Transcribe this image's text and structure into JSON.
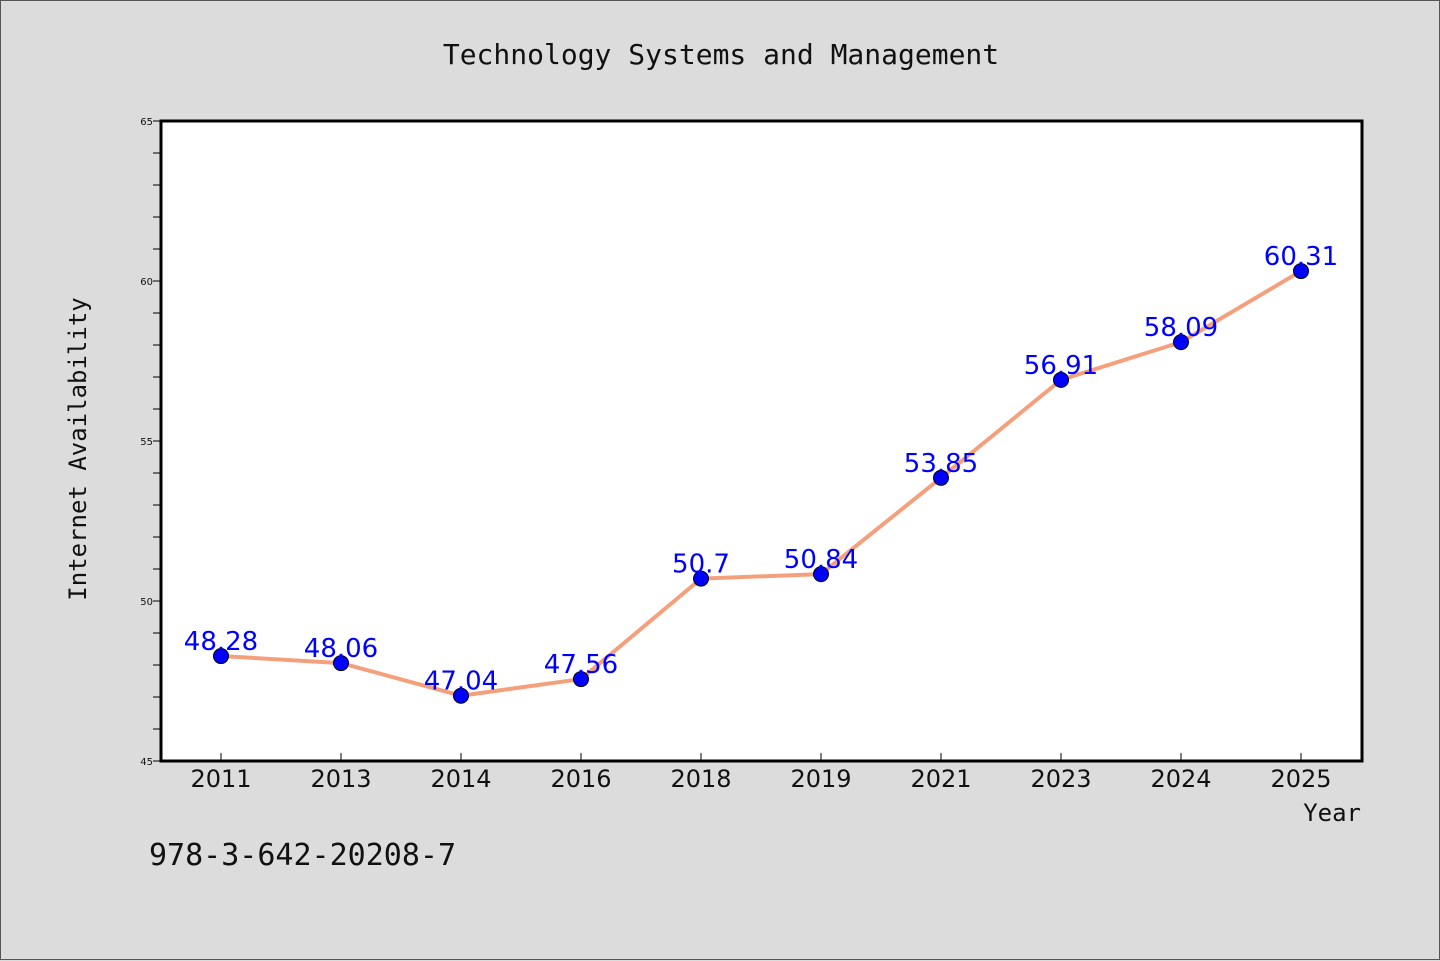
{
  "chart_data": {
    "type": "line",
    "title": "Technology Systems and Management",
    "xlabel": "Year",
    "ylabel": "Internet Availability",
    "categories": [
      "2011",
      "2013",
      "2014",
      "2016",
      "2018",
      "2019",
      "2021",
      "2023",
      "2024",
      "2025"
    ],
    "series": [
      {
        "values": [
          48.28,
          48.06,
          47.04,
          47.56,
          50.7,
          50.84,
          53.85,
          56.91,
          58.09,
          60.31
        ],
        "data_labels": [
          "48.28",
          "48.06",
          "47.04",
          "47.56",
          "50.7",
          "50.84",
          "53.85",
          "56.91",
          "58.09",
          "60.31"
        ],
        "line_color": "#f4a07c",
        "marker_color": "#0000ff"
      }
    ],
    "ylim": [
      45,
      65
    ],
    "y_ticks": [
      "45",
      "50",
      "55",
      "60",
      "65"
    ],
    "y_minor_step": 1,
    "grid": false,
    "background": "#ffffff"
  },
  "footer": {
    "isbn": "978-3-642-20208-7"
  },
  "page": {
    "background": "#dcdcdc"
  }
}
